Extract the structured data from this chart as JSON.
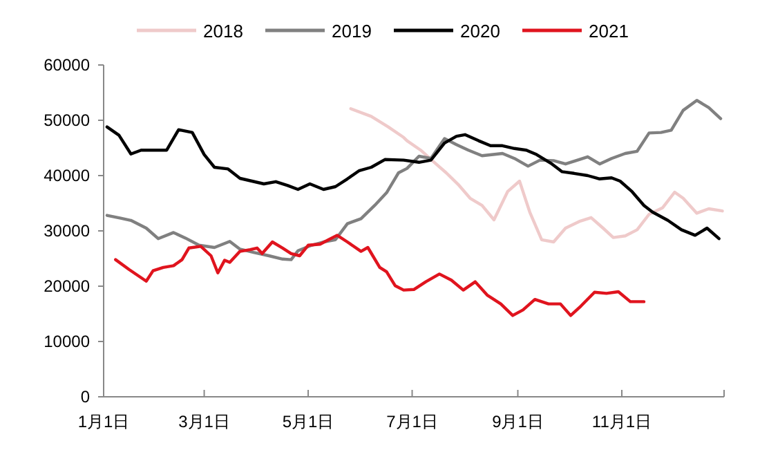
{
  "chart_data": {
    "type": "line",
    "xlim": [
      "--01-01",
      "--12-31"
    ],
    "ylim": [
      0,
      60000
    ],
    "xticks": [
      {
        "value": "--01-01",
        "label": "1月1日"
      },
      {
        "value": "--03-01",
        "label": "3月1日"
      },
      {
        "value": "--05-01",
        "label": "5月1日"
      },
      {
        "value": "--07-01",
        "label": "7月1日"
      },
      {
        "value": "--09-01",
        "label": "9月1日"
      },
      {
        "value": "--11-01",
        "label": "11月1日"
      },
      {
        "value": "--12-31",
        "label": null
      }
    ],
    "yticks": [
      0,
      10000,
      20000,
      30000,
      40000,
      50000,
      60000
    ],
    "grid": false,
    "legend": "top",
    "line_style": "solid",
    "marker": "none",
    "series": [
      {
        "name": "2018",
        "color": "#efcaca",
        "x": [
          "--05-26",
          "--06-07",
          "--06-17",
          "--06-26",
          "--06-28",
          "--07-06",
          "--07-15",
          "--07-21",
          "--07-28",
          "--08-04",
          "--08-11",
          "--08-18",
          "--08-26",
          "--09-02",
          "--09-08",
          "--09-15",
          "--09-22",
          "--09-29",
          "--10-07",
          "--10-14",
          "--10-21",
          "--10-27",
          "--11-03",
          "--11-10",
          "--11-17",
          "--11-25",
          "--12-02",
          "--12-07",
          "--12-15",
          "--12-22",
          "--12-30"
        ],
        "values": [
          52100,
          50700,
          48800,
          46900,
          46300,
          44600,
          42100,
          40500,
          38400,
          35900,
          34600,
          32000,
          37100,
          39000,
          33400,
          28400,
          28000,
          30500,
          31700,
          32400,
          30500,
          28800,
          29100,
          30200,
          33000,
          34200,
          37000,
          35900,
          33200,
          34000,
          33600
        ]
      },
      {
        "name": "2019",
        "color": "#808080",
        "x": [
          "--01-03",
          "--01-11",
          "--01-17",
          "--01-26",
          "--02-02",
          "--02-11",
          "--02-18",
          "--02-26",
          "--03-07",
          "--03-16",
          "--03-22",
          "--03-30",
          "--04-08",
          "--04-16",
          "--04-21",
          "--04-25",
          "--05-03",
          "--05-10",
          "--05-17",
          "--05-24",
          "--06-01",
          "--06-09",
          "--06-16",
          "--06-23",
          "--06-28",
          "--07-05",
          "--07-12",
          "--07-20",
          "--07-27",
          "--08-03",
          "--08-11",
          "--08-23",
          "--08-30",
          "--09-07",
          "--09-14",
          "--09-22",
          "--09-29",
          "--10-07",
          "--10-12",
          "--10-19",
          "--10-26",
          "--11-03",
          "--11-10",
          "--11-17",
          "--11-24",
          "--11-30",
          "--12-07",
          "--12-15",
          "--12-22",
          "--12-29"
        ],
        "values": [
          32800,
          32300,
          31900,
          30500,
          28600,
          29700,
          28700,
          27400,
          27000,
          28100,
          26700,
          26100,
          25500,
          24900,
          24800,
          26400,
          27400,
          28000,
          28400,
          31300,
          32200,
          34600,
          36900,
          40500,
          41300,
          43500,
          43100,
          46700,
          45600,
          44600,
          43600,
          44000,
          43100,
          41700,
          42800,
          42700,
          42100,
          42900,
          43400,
          42100,
          43100,
          44000,
          44400,
          47700,
          47800,
          48200,
          51800,
          53600,
          52300,
          50300
        ]
      },
      {
        "name": "2020",
        "color": "#000000",
        "x": [
          "--01-03",
          "--01-10",
          "--01-17",
          "--01-23",
          "--02-07",
          "--02-14",
          "--02-22",
          "--03-01",
          "--03-07",
          "--03-15",
          "--03-22",
          "--03-29",
          "--04-05",
          "--04-12",
          "--04-19",
          "--04-25",
          "--05-02",
          "--05-10",
          "--05-17",
          "--05-24",
          "--05-31",
          "--06-07",
          "--06-15",
          "--06-26",
          "--07-05",
          "--07-12",
          "--07-20",
          "--07-27",
          "--08-01",
          "--08-09",
          "--08-16",
          "--08-23",
          "--08-30",
          "--09-06",
          "--09-12",
          "--09-21",
          "--09-27",
          "--10-04",
          "--10-12",
          "--10-19",
          "--10-26",
          "--10-31",
          "--11-07",
          "--11-14",
          "--11-19",
          "--11-28",
          "--12-06",
          "--12-14",
          "--12-21",
          "--12-28"
        ],
        "values": [
          48800,
          47300,
          43900,
          44600,
          44600,
          48300,
          47800,
          43800,
          41500,
          41200,
          39500,
          39000,
          38500,
          38900,
          38200,
          37500,
          38500,
          37500,
          38000,
          39400,
          40900,
          41500,
          42900,
          42800,
          42400,
          42800,
          45900,
          47100,
          47400,
          46300,
          45400,
          45400,
          44900,
          44600,
          43800,
          42100,
          40700,
          40400,
          40000,
          39400,
          39600,
          39000,
          37100,
          34600,
          33400,
          31900,
          30200,
          29200,
          30500,
          28600
        ]
      },
      {
        "name": "2021",
        "color": "#e0141e",
        "x": [
          "--01-08",
          "--01-16",
          "--01-26",
          "--01-30",
          "--02-05",
          "--02-11",
          "--02-16",
          "--02-20",
          "--02-27",
          "--03-05",
          "--03-09",
          "--03-13",
          "--03-16",
          "--03-22",
          "--03-28",
          "--04-01",
          "--04-04",
          "--04-10",
          "--04-16",
          "--04-21",
          "--04-26",
          "--05-01",
          "--05-08",
          "--05-13",
          "--05-18",
          "--05-24",
          "--06-01",
          "--06-05",
          "--06-12",
          "--06-16",
          "--06-21",
          "--06-26",
          "--07-02",
          "--07-09",
          "--07-17",
          "--07-24",
          "--07-31",
          "--08-07",
          "--08-14",
          "--08-22",
          "--08-29",
          "--09-04",
          "--09-11",
          "--09-19",
          "--09-26",
          "--10-02",
          "--10-08",
          "--10-16",
          "--10-23",
          "--10-30",
          "--11-06",
          "--11-14"
        ],
        "values": [
          24800,
          23000,
          20900,
          22800,
          23400,
          23700,
          24800,
          26900,
          27200,
          25500,
          22400,
          24700,
          24300,
          26300,
          26600,
          26900,
          25900,
          28000,
          26900,
          25900,
          25500,
          27400,
          27600,
          28400,
          29200,
          28000,
          26300,
          27000,
          23400,
          22600,
          20100,
          19300,
          19400,
          20800,
          22200,
          21100,
          19300,
          20800,
          18400,
          16800,
          14700,
          15700,
          17600,
          16800,
          16800,
          14700,
          16400,
          18900,
          18700,
          19000,
          17200,
          17200
        ]
      }
    ]
  }
}
